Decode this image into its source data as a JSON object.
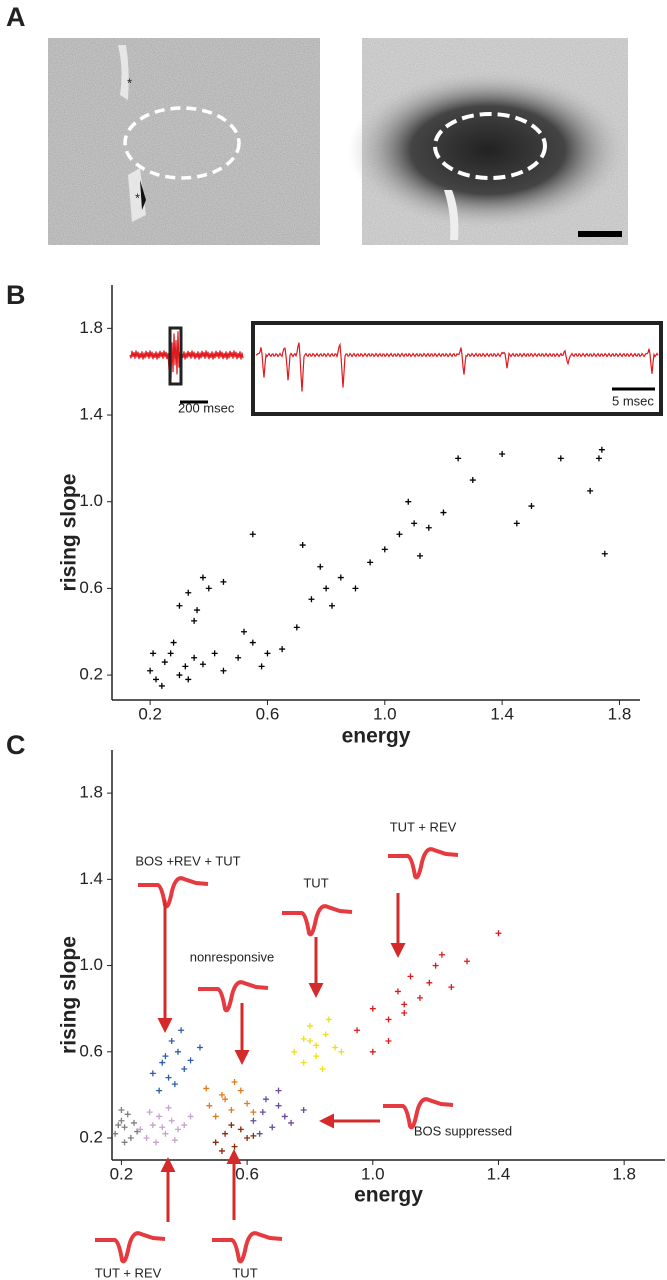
{
  "panel_labels": [
    "A",
    "B",
    "C"
  ],
  "panel_a": {
    "marks": [
      "*",
      "*"
    ]
  },
  "chart_data": [
    {
      "type": "scatter",
      "xlabel": "energy",
      "ylabel": "rising slope",
      "marker": "+",
      "xlim": [
        0.07,
        1.87
      ],
      "ylim": [
        0.085,
        2.0
      ],
      "xticks": [
        0.2,
        0.6,
        {
          "value": 1,
          "label": "1.0"
        },
        1.4,
        1.8
      ],
      "yticks": [
        0.2,
        0.6,
        {
          "value": 1,
          "label": "1.0"
        },
        1.4,
        1.8
      ],
      "annotations": [
        "200 msec",
        "5 msec"
      ],
      "series": [
        {
          "color": "#000000",
          "x": [
            0.2,
            0.22,
            0.25,
            0.27,
            0.3,
            0.32,
            0.35,
            0.24,
            0.28,
            0.21,
            0.33,
            0.38,
            0.42,
            0.45,
            0.5,
            0.55,
            0.6,
            0.52,
            0.58,
            0.65,
            0.7,
            0.3,
            0.33,
            0.36,
            0.4,
            0.35,
            0.38,
            0.75,
            0.8,
            0.85,
            0.78,
            0.82,
            0.9,
            0.72,
            0.95,
            1.0,
            1.05,
            1.1,
            1.15,
            1.2,
            1.08,
            1.12,
            1.25,
            1.3,
            1.4,
            1.5,
            1.6,
            1.73,
            1.74,
            1.75,
            1.7,
            0.55,
            0.45,
            1.45
          ],
          "y": [
            0.22,
            0.18,
            0.26,
            0.3,
            0.2,
            0.24,
            0.28,
            0.15,
            0.35,
            0.3,
            0.18,
            0.25,
            0.3,
            0.22,
            0.28,
            0.35,
            0.3,
            0.4,
            0.24,
            0.32,
            0.42,
            0.52,
            0.58,
            0.5,
            0.6,
            0.45,
            0.65,
            0.55,
            0.6,
            0.65,
            0.7,
            0.52,
            0.6,
            0.8,
            0.72,
            0.78,
            0.85,
            0.9,
            0.88,
            0.95,
            1.0,
            0.75,
            1.2,
            1.1,
            1.22,
            0.98,
            1.2,
            1.2,
            1.24,
            0.76,
            1.05,
            0.85,
            0.63,
            0.9
          ]
        }
      ]
    },
    {
      "type": "scatter",
      "xlabel": "energy",
      "ylabel": "rising slope",
      "marker": "+",
      "xlim": [
        0.17,
        1.93
      ],
      "ylim": [
        0.098,
        2.0
      ],
      "xticks": [
        0.2,
        0.6,
        {
          "value": 1,
          "label": "1.0"
        },
        1.4,
        1.8
      ],
      "yticks": [
        0.2,
        0.6,
        {
          "value": 1,
          "label": "1.0"
        },
        1.4,
        1.8
      ],
      "series": [
        {
          "color": "#7f7f7f",
          "x": [
            0.18,
            0.2,
            0.21,
            0.22,
            0.23,
            0.19,
            0.24,
            0.21,
            0.2,
            0.25
          ],
          "y": [
            0.22,
            0.28,
            0.25,
            0.31,
            0.2,
            0.26,
            0.27,
            0.18,
            0.33,
            0.23
          ]
        },
        {
          "name": "TUT + REV",
          "color": "#c9a3cf",
          "x": [
            0.28,
            0.3,
            0.32,
            0.34,
            0.36,
            0.38,
            0.31,
            0.35,
            0.4,
            0.29,
            0.33,
            0.37,
            0.42,
            0.26
          ],
          "y": [
            0.2,
            0.26,
            0.3,
            0.22,
            0.28,
            0.24,
            0.18,
            0.34,
            0.26,
            0.32,
            0.25,
            0.19,
            0.3,
            0.24
          ]
        },
        {
          "name": "BOS +REV + TUT",
          "color": "#2e5da8",
          "x": [
            0.3,
            0.33,
            0.35,
            0.38,
            0.4,
            0.36,
            0.32,
            0.42,
            0.45,
            0.37,
            0.34,
            0.39
          ],
          "y": [
            0.5,
            0.55,
            0.48,
            0.6,
            0.52,
            0.65,
            0.42,
            0.56,
            0.62,
            0.45,
            0.58,
            0.7
          ]
        },
        {
          "name": "nonresponsive",
          "color": "#e07b1a",
          "x": [
            0.48,
            0.52,
            0.55,
            0.58,
            0.5,
            0.56,
            0.6,
            0.53,
            0.47,
            0.62
          ],
          "y": [
            0.35,
            0.4,
            0.33,
            0.42,
            0.3,
            0.46,
            0.36,
            0.38,
            0.43,
            0.32
          ]
        },
        {
          "name": "TUT",
          "color": "#8b2a0a",
          "x": [
            0.5,
            0.53,
            0.56,
            0.58,
            0.6,
            0.55,
            0.52,
            0.62
          ],
          "y": [
            0.18,
            0.22,
            0.16,
            0.24,
            0.2,
            0.26,
            0.14,
            0.21
          ]
        },
        {
          "name": "BOS suppressed",
          "color": "#6a4ba0",
          "x": [
            0.62,
            0.65,
            0.68,
            0.7,
            0.72,
            0.66,
            0.74,
            0.78,
            0.64,
            0.7
          ],
          "y": [
            0.28,
            0.32,
            0.25,
            0.35,
            0.3,
            0.38,
            0.27,
            0.33,
            0.22,
            0.42
          ]
        },
        {
          "name": "TUT",
          "color": "#f0df1b",
          "x": [
            0.75,
            0.78,
            0.8,
            0.82,
            0.85,
            0.88,
            0.8,
            0.84,
            0.78,
            0.9,
            0.86,
            0.82
          ],
          "y": [
            0.6,
            0.55,
            0.65,
            0.58,
            0.68,
            0.62,
            0.72,
            0.52,
            0.66,
            0.6,
            0.75,
            0.63
          ]
        },
        {
          "name": "TUT + REV",
          "color": "#e0191f",
          "x": [
            0.95,
            1.0,
            1.05,
            1.08,
            1.1,
            1.12,
            1.15,
            1.18,
            1.2,
            1.05,
            1.1,
            1.22,
            1.25,
            1.0,
            1.3,
            1.4
          ],
          "y": [
            0.7,
            0.8,
            0.75,
            0.88,
            0.82,
            0.95,
            0.85,
            0.92,
            1.0,
            0.65,
            0.78,
            1.05,
            0.9,
            0.6,
            1.02,
            1.15
          ]
        }
      ]
    }
  ]
}
